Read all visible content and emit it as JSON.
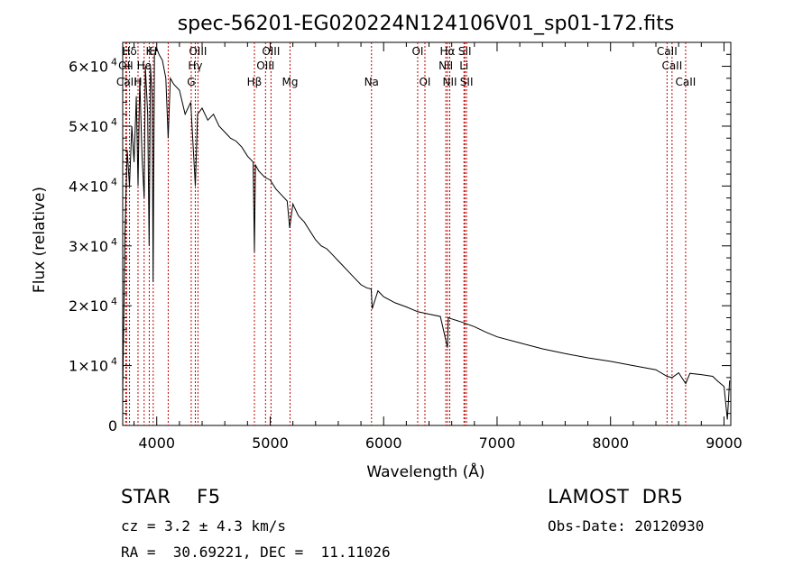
{
  "chart_data": {
    "type": "line",
    "title": "spec-56201-EG020224N124106V01_sp01-172.fits",
    "xlabel": "Wavelength (Å)",
    "ylabel": "Flux (relative)",
    "xlim": [
      3700,
      9060
    ],
    "ylim": [
      0,
      64000
    ],
    "x_ticks": [
      4000,
      5000,
      6000,
      7000,
      8000,
      9000
    ],
    "y_ticks": [
      {
        "value": 0,
        "label": "0"
      },
      {
        "value": 10000,
        "label": "1×10",
        "exp": "4"
      },
      {
        "value": 20000,
        "label": "2×10",
        "exp": "4"
      },
      {
        "value": 30000,
        "label": "3×10",
        "exp": "4"
      },
      {
        "value": 40000,
        "label": "4×10",
        "exp": "4"
      },
      {
        "value": 50000,
        "label": "5×10",
        "exp": "4"
      },
      {
        "value": 60000,
        "label": "6×10",
        "exp": "4"
      }
    ],
    "series": [
      {
        "x": [
          3700,
          3720,
          3740,
          3760,
          3780,
          3800,
          3820,
          3835,
          3850,
          3870,
          3889,
          3900,
          3920,
          3933,
          3945,
          3960,
          3968,
          3980,
          4000,
          4020,
          4050,
          4080,
          4101,
          4120,
          4150,
          4200,
          4250,
          4300,
          4340,
          4360,
          4400,
          4450,
          4500,
          4550,
          4600,
          4650,
          4700,
          4750,
          4800,
          4850,
          4861,
          4870,
          4900,
          4950,
          5000,
          5050,
          5100,
          5150,
          5172,
          5200,
          5250,
          5300,
          5350,
          5400,
          5450,
          5500,
          5550,
          5600,
          5650,
          5700,
          5750,
          5800,
          5850,
          5890,
          5900,
          5950,
          6000,
          6100,
          6200,
          6300,
          6400,
          6500,
          6563,
          6570,
          6600,
          6700,
          6800,
          6900,
          7000,
          7200,
          7400,
          7600,
          7800,
          8000,
          8200,
          8400,
          8498,
          8542,
          8600,
          8662,
          8700,
          8800,
          8900,
          8950,
          9000,
          9030,
          9050
        ],
        "y": [
          5000,
          32000,
          46000,
          40000,
          50000,
          44000,
          55000,
          40000,
          58000,
          45000,
          38000,
          60000,
          52000,
          30000,
          60000,
          55000,
          24000,
          62000,
          63000,
          62000,
          61000,
          58000,
          48000,
          58000,
          57000,
          56000,
          52000,
          54000,
          40000,
          52000,
          53000,
          51000,
          52000,
          50000,
          49000,
          48000,
          47500,
          46500,
          45000,
          44000,
          29000,
          43500,
          42500,
          41500,
          41000,
          39500,
          38500,
          37500,
          33000,
          37000,
          35000,
          34000,
          32500,
          31000,
          30000,
          29500,
          28500,
          27500,
          26500,
          25500,
          24500,
          23500,
          23000,
          22800,
          19500,
          22500,
          21500,
          20500,
          19800,
          19000,
          18600,
          18200,
          13000,
          18000,
          17800,
          17200,
          16500,
          15600,
          14800,
          13800,
          12800,
          12000,
          11300,
          10700,
          10000,
          9300,
          8200,
          8000,
          8800,
          7000,
          8700,
          8500,
          8200,
          7300,
          6500,
          1000,
          7500
        ]
      }
    ],
    "lines_label_row1": [
      {
        "label": "Hδ",
        "wl": 3760
      },
      {
        "label": "K",
        "wl": 3934
      },
      {
        "label": "H",
        "wl": 3969
      },
      {
        "label": "OIII",
        "wl": 4363
      },
      {
        "label": "OIII",
        "wl": 5007
      },
      {
        "label": "OI",
        "wl": 6300
      },
      {
        "label": "Hα",
        "wl": 6563
      },
      {
        "label": "SII",
        "wl": 6716
      },
      {
        "label": "CaII",
        "wl": 8498
      }
    ],
    "lines_label_row2": [
      {
        "label": "OII",
        "wl": 3727
      },
      {
        "label": "He",
        "wl": 3889
      },
      {
        "label": "Hγ",
        "wl": 4340
      },
      {
        "label": "OIII",
        "wl": 4959
      },
      {
        "label": "NII",
        "wl": 6548
      },
      {
        "label": "Li",
        "wl": 6708
      },
      {
        "label": "CaII",
        "wl": 8542
      }
    ],
    "lines_label_row3": [
      {
        "label": "CaII",
        "wl": 3734
      },
      {
        "label": "H",
        "wl": 3835
      },
      {
        "label": "G",
        "wl": 4304
      },
      {
        "label": "Hβ",
        "wl": 4861
      },
      {
        "label": "Mg",
        "wl": 5175
      },
      {
        "label": "Na",
        "wl": 5893
      },
      {
        "label": "OI",
        "wl": 6364
      },
      {
        "label": "NII",
        "wl": 6583
      },
      {
        "label": "SII",
        "wl": 6731
      },
      {
        "label": "CaII",
        "wl": 8662
      }
    ],
    "line_wavelengths": [
      3727,
      3734,
      3760,
      3835,
      3889,
      3934,
      3969,
      4101,
      4304,
      4340,
      4363,
      4861,
      4959,
      5007,
      5175,
      5893,
      6300,
      6364,
      6548,
      6563,
      6583,
      6708,
      6716,
      6731,
      8498,
      8542,
      8662
    ],
    "line_color": "#c00000"
  },
  "info": {
    "obj_class": "STAR    F5",
    "survey": "LAMOST  DR5",
    "cz": "cz = 3.2 ± 4.3 km/s",
    "obs_date": "Obs-Date: 20120930",
    "radec": "RA =  30.69221, DEC =  11.11026"
  }
}
